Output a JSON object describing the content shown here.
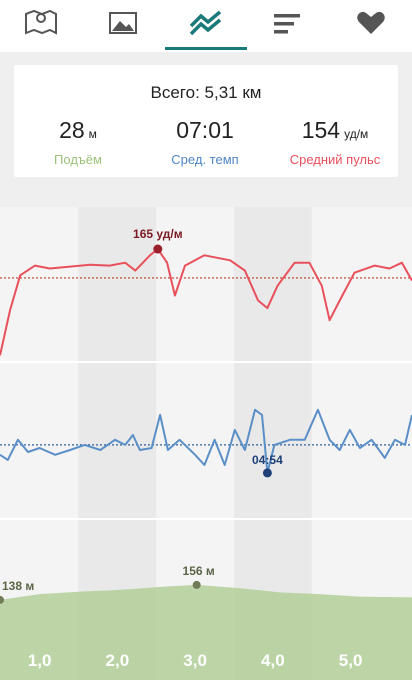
{
  "summary": {
    "total": "Всего: 5,31 км",
    "stats": [
      {
        "value": 28,
        "unit": "м",
        "label": "Подъём",
        "color": "#9cc27a"
      },
      {
        "value": "07:01",
        "label": "Сред. темп",
        "color": "#4f86c6"
      },
      {
        "value": 154,
        "unit": "уд/м",
        "label": "Средний пульс",
        "color": "#e8505b"
      }
    ]
  },
  "charts": {
    "xlim": [
      0.49,
      5.79
    ],
    "xticks": [
      {
        "value": 1,
        "label": "1,0"
      },
      {
        "value": 2,
        "label": "2,0"
      },
      {
        "value": 3,
        "label": "3,0"
      },
      {
        "value": 4,
        "label": "4,0"
      },
      {
        "value": 5,
        "label": "5,0"
      }
    ],
    "heart_rate": {
      "color": "#e8505b",
      "ylim": [
        122,
        181
      ],
      "x": [
        0.49,
        0.62,
        0.75,
        0.94,
        1.13,
        1.39,
        1.65,
        1.9,
        2.1,
        2.23,
        2.42,
        2.52,
        2.64,
        2.74,
        2.87,
        3.12,
        3.45,
        3.64,
        3.81,
        3.93,
        4.06,
        4.28,
        4.47,
        4.63,
        4.73,
        4.86,
        5.05,
        5.31,
        5.5,
        5.66,
        5.79
      ],
      "values": [
        124.5,
        141.8,
        155,
        158.7,
        157.6,
        158.3,
        159,
        158.7,
        159.8,
        156.8,
        162.6,
        165,
        159.8,
        147.3,
        158.7,
        162.6,
        160.7,
        156.8,
        145.4,
        142.5,
        151,
        159.8,
        159.8,
        151,
        137.9,
        145.4,
        156,
        158.7,
        157.6,
        159.8,
        153
      ],
      "peak": {
        "x": 2.52,
        "value": 165,
        "label": "165 уд/м"
      }
    },
    "pace": {
      "color": "#5b8fc7",
      "ylim": [
        85,
        797
      ],
      "x": [
        0.49,
        0.59,
        0.72,
        0.85,
        1.0,
        1.2,
        1.39,
        1.58,
        1.78,
        1.97,
        2.1,
        2.2,
        2.29,
        2.44,
        2.55,
        2.65,
        2.8,
        3.0,
        3.12,
        3.25,
        3.38,
        3.51,
        3.64,
        3.77,
        3.86,
        3.93,
        4.02,
        4.22,
        4.41,
        4.58,
        4.73,
        4.86,
        4.99,
        5.12,
        5.27,
        5.44,
        5.57,
        5.7,
        5.79
      ],
      "values": [
        376,
        353,
        444,
        389,
        407,
        376,
        398,
        421,
        398,
        444,
        421,
        466,
        398,
        407,
        557,
        398,
        444,
        376,
        330,
        444,
        330,
        489,
        398,
        580,
        557,
        294,
        421,
        444,
        444,
        580,
        444,
        398,
        489,
        407,
        444,
        362,
        444,
        421,
        557
      ],
      "min": {
        "x": 3.93,
        "value": 294,
        "label": "04:54"
      }
    },
    "elevation": {
      "color": "#b3cf98",
      "ylim": [
        42,
        235
      ],
      "x": [
        0.49,
        1.0,
        1.52,
        2.03,
        2.55,
        3.02,
        3.58,
        4.09,
        4.6,
        5.12,
        5.79
      ],
      "values": [
        138,
        145,
        148,
        150,
        153.6,
        156,
        152,
        147,
        145,
        142,
        141
      ],
      "points": [
        {
          "x": 0.49,
          "value": 138,
          "label": "138 м"
        },
        {
          "x": 3.02,
          "value": 156,
          "label": "156 м"
        }
      ]
    }
  }
}
